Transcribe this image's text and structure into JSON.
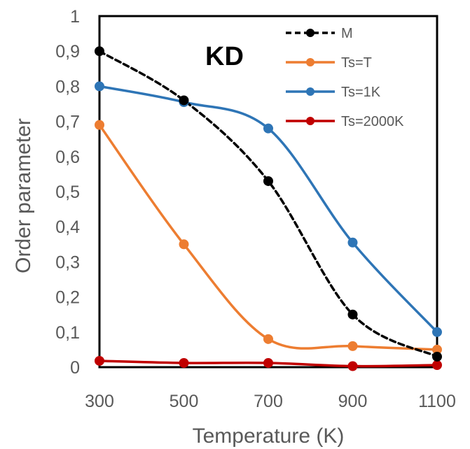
{
  "chart_data": {
    "type": "line",
    "title": "",
    "annotation": "KD",
    "xlabel": "Temperature (K)",
    "ylabel": "Order parameter",
    "x": [
      300,
      500,
      700,
      900,
      1100
    ],
    "xticks": [
      "300",
      "500",
      "700",
      "900",
      "1100"
    ],
    "yticks": [
      "0",
      "0,1",
      "0,2",
      "0,3",
      "0,4",
      "0,5",
      "0,6",
      "0,7",
      "0,8",
      "0,9",
      "1"
    ],
    "xlim": [
      300,
      1100
    ],
    "ylim": [
      0,
      1
    ],
    "grid": false,
    "legend_position": "top-right",
    "series": [
      {
        "name": "M",
        "color": "#000000",
        "dashed": true,
        "values": [
          0.9,
          0.76,
          0.53,
          0.15,
          0.03
        ]
      },
      {
        "name": "Ts=T",
        "color": "#ED7D31",
        "dashed": false,
        "values": [
          0.69,
          0.35,
          0.08,
          0.06,
          0.05
        ]
      },
      {
        "name": "Ts=1K",
        "color": "#2E75B6",
        "dashed": false,
        "values": [
          0.8,
          0.755,
          0.68,
          0.355,
          0.1
        ]
      },
      {
        "name": "Ts=2000K",
        "color": "#C00000",
        "dashed": false,
        "values": [
          0.018,
          0.012,
          0.012,
          0.003,
          0.006
        ]
      }
    ]
  }
}
